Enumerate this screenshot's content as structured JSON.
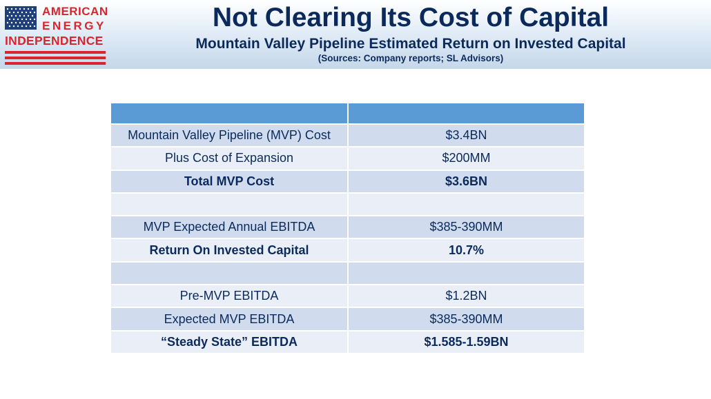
{
  "logo": {
    "line1": "AMERICAN",
    "line2": "ENERGY",
    "line3": "INDEPENDENCE"
  },
  "header": {
    "title": "Not Clearing Its Cost of Capital",
    "subtitle": "Mountain Valley Pipeline Estimated Return on Invested Capital",
    "sources": "(Sources: Company reports; SL Advisors)"
  },
  "table": {
    "columns": [
      "",
      ""
    ],
    "rows": [
      {
        "label": "Mountain Valley Pipeline (MVP) Cost",
        "value": "$3.4BN",
        "bold": false
      },
      {
        "label": "Plus Cost of Expansion",
        "value": "$200MM",
        "bold": false
      },
      {
        "label": "Total MVP Cost",
        "value": "$3.6BN",
        "bold": true
      },
      {
        "label": "",
        "value": "",
        "bold": false
      },
      {
        "label": "MVP Expected Annual EBITDA",
        "value": "$385-390MM",
        "bold": false
      },
      {
        "label": "Return On Invested Capital",
        "value": "10.7%",
        "bold": true
      },
      {
        "label": "",
        "value": "",
        "bold": false
      },
      {
        "label": "Pre-MVP EBITDA",
        "value": "$1.2BN",
        "bold": false
      },
      {
        "label": "Expected MVP EBITDA",
        "value": "$385-390MM",
        "bold": false
      },
      {
        "label": "“Steady State” EBITDA",
        "value": "$1.585-1.59BN",
        "bold": true
      }
    ]
  },
  "colors": {
    "navy_text": "#0b2a5b",
    "header_row": "#5b9bd5",
    "row_dark": "#d0dcee",
    "row_light": "#e9eef7",
    "logo_red": "#d8262e"
  }
}
